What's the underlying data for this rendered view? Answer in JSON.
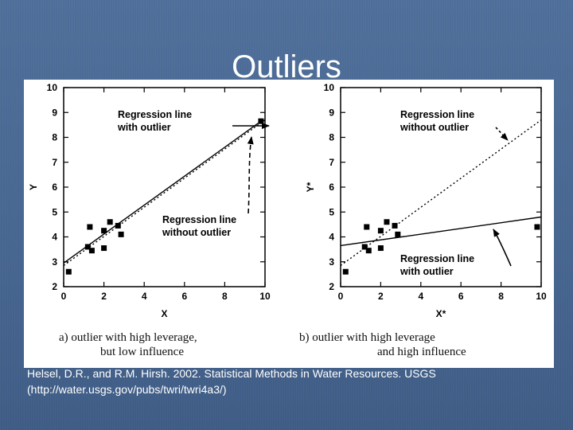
{
  "slide": {
    "title": "Outliers",
    "citation_line1": "Helsel, D.R., and R.M. Hirsh.  2002.  Statistical Methods in Water Resources.  USGS",
    "citation_line2": "(http://water.usgs.gov/pubs/twri/twri4a3/)"
  },
  "colors": {
    "background": "#4f6f9a",
    "figure": "#ffffff",
    "ink": "#000000"
  },
  "chart_data": [
    {
      "type": "scatter",
      "xlabel": "X",
      "ylabel": "Y",
      "xlim": [
        0,
        10
      ],
      "ylim": [
        2,
        10
      ],
      "xticks": [
        0,
        2,
        4,
        6,
        8,
        10
      ],
      "yticks": [
        2,
        3,
        4,
        5,
        6,
        7,
        8,
        9,
        10
      ],
      "points": [
        {
          "x": 0.25,
          "y": 2.6
        },
        {
          "x": 1.2,
          "y": 3.6
        },
        {
          "x": 1.3,
          "y": 4.4
        },
        {
          "x": 1.4,
          "y": 3.45
        },
        {
          "x": 2.0,
          "y": 3.55
        },
        {
          "x": 2.0,
          "y": 4.25
        },
        {
          "x": 2.3,
          "y": 4.6
        },
        {
          "x": 2.7,
          "y": 4.45
        },
        {
          "x": 2.85,
          "y": 4.1
        },
        {
          "x": 9.8,
          "y": 8.65
        }
      ],
      "lines": [
        {
          "name": "Regression line with outlier",
          "style": "solid",
          "from": [
            0,
            2.95
          ],
          "to": [
            9.8,
            8.65
          ]
        },
        {
          "name": "Regression line without outlier",
          "style": "dotted",
          "from": [
            0,
            2.85
          ],
          "to": [
            10,
            8.7
          ]
        }
      ],
      "annotations": [
        {
          "line1": "Regression line",
          "line2": "with outlier"
        },
        {
          "line1": "Regression line",
          "line2": "without outlier"
        }
      ],
      "caption_line1": "a)  outlier with high leverage,",
      "caption_line2": "but low influence"
    },
    {
      "type": "scatter",
      "xlabel": "X*",
      "ylabel": "Y*",
      "xlim": [
        0,
        10
      ],
      "ylim": [
        2,
        10
      ],
      "xticks": [
        0,
        2,
        4,
        6,
        8,
        10
      ],
      "yticks": [
        2,
        3,
        4,
        5,
        6,
        7,
        8,
        9,
        10
      ],
      "points": [
        {
          "x": 0.25,
          "y": 2.6
        },
        {
          "x": 1.2,
          "y": 3.6
        },
        {
          "x": 1.3,
          "y": 4.4
        },
        {
          "x": 1.4,
          "y": 3.45
        },
        {
          "x": 2.0,
          "y": 3.55
        },
        {
          "x": 2.0,
          "y": 4.25
        },
        {
          "x": 2.3,
          "y": 4.6
        },
        {
          "x": 2.7,
          "y": 4.45
        },
        {
          "x": 2.85,
          "y": 4.1
        },
        {
          "x": 9.8,
          "y": 4.4
        }
      ],
      "lines": [
        {
          "name": "Regression line without outlier",
          "style": "dotted",
          "from": [
            0,
            2.85
          ],
          "to": [
            10,
            8.7
          ]
        },
        {
          "name": "Regression line with outlier",
          "style": "solid",
          "from": [
            0,
            3.65
          ],
          "to": [
            10,
            4.8
          ]
        }
      ],
      "annotations": [
        {
          "line1": "Regression line",
          "line2": "without outlier"
        },
        {
          "line1": "Regression line",
          "line2": "with outlier"
        }
      ],
      "caption_line1": "b)  outlier with high leverage",
      "caption_line2": "and high influence"
    }
  ]
}
